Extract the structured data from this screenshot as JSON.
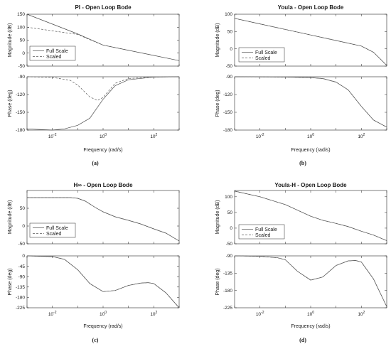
{
  "colors": {
    "full": "#4a4a4a",
    "scaled": "#5a5a5a",
    "axes": "#262626",
    "background": "#ffffff"
  },
  "chart_data": [
    {
      "type": "line",
      "caption": "(a)",
      "title": "PI - Open Loop Bode",
      "xlabel": "Frequency (rad/s)",
      "x_scale": "log",
      "xlim": [
        0.001,
        1000
      ],
      "x_tick_labels": [
        "10^-2",
        "10^0",
        "10^2"
      ],
      "legend": {
        "placement": "bottom-left",
        "entries": [
          "Full Scale",
          "Scaled"
        ]
      },
      "magnitude": {
        "ylabel": "Magnitude (dB)",
        "ylim": [
          -50,
          150
        ],
        "y_ticks": [
          150,
          100,
          50,
          0,
          -50
        ],
        "series": [
          {
            "name": "Full Scale",
            "style": "solid",
            "x": [
              0.001,
              0.01,
              0.1,
              1,
              10,
              100,
              1000
            ],
            "y": [
              150,
              112,
              74,
              31,
              11,
              -9,
              -29
            ]
          },
          {
            "name": "Scaled",
            "style": "dashed",
            "x": [
              0.001,
              0.01,
              0.1,
              0.3,
              1,
              10
            ],
            "y": [
              100,
              86,
              72,
              52,
              31,
              11
            ]
          }
        ]
      },
      "phase": {
        "ylabel": "Phase (deg)",
        "ylim": [
          -180,
          -90
        ],
        "y_ticks": [
          -90,
          -120,
          -150,
          -180
        ],
        "series": [
          {
            "name": "Full Scale",
            "style": "solid",
            "x": [
              0.001,
              0.01,
              0.03,
              0.1,
              0.3,
              1,
              3,
              10,
              100,
              1000
            ],
            "y": [
              -178,
              -180,
              -178,
              -172,
              -160,
              -128,
              -105,
              -95,
              -90.5,
              -90
            ]
          },
          {
            "name": "Scaled",
            "style": "dashed",
            "x": [
              0.001,
              0.01,
              0.05,
              0.1,
              0.3,
              0.6,
              1,
              3,
              10,
              100,
              1000
            ],
            "y": [
              -90,
              -91,
              -96,
              -104,
              -124,
              -130,
              -125,
              -101,
              -93,
              -90.5,
              -90
            ]
          }
        ]
      }
    },
    {
      "type": "line",
      "caption": "(b)",
      "title": "Youla - Open Loop Bode",
      "xlabel": "Frequency (rad/s)",
      "x_scale": "log",
      "xlim": [
        0.001,
        1000
      ],
      "x_tick_labels": [
        "10^-2",
        "10^0",
        "10^2"
      ],
      "legend": {
        "placement": "bottom-right",
        "entries": [
          "Full Scale",
          "Scaled"
        ]
      },
      "magnitude": {
        "ylabel": "Magnitude (dB)",
        "ylim": [
          -50,
          100
        ],
        "y_ticks": [
          100,
          50,
          0,
          -50
        ],
        "series": [
          {
            "name": "Full Scale",
            "style": "solid",
            "x": [
              0.001,
              0.01,
              0.1,
              1,
              10,
              100,
              300,
              1000
            ],
            "y": [
              88,
              72,
              56,
              40,
              24,
              8,
              -10,
              -48
            ]
          },
          {
            "name": "Scaled",
            "style": "dashed",
            "x": [
              0.001,
              0.01,
              0.1,
              1,
              10,
              100,
              300,
              1000
            ],
            "y": [
              88,
              72,
              56,
              40,
              24,
              8,
              -10,
              -48
            ]
          }
        ]
      },
      "phase": {
        "ylabel": "Phase (deg)",
        "ylim": [
          -180,
          -90
        ],
        "y_ticks": [
          -90,
          -120,
          -150,
          -180
        ],
        "series": [
          {
            "name": "Full Scale",
            "style": "solid",
            "x": [
              0.001,
              0.1,
              1,
              3,
              10,
              30,
              100,
              300,
              1000
            ],
            "y": [
              -90,
              -90.5,
              -91.5,
              -93,
              -99,
              -112,
              -140,
              -163,
              -175
            ]
          },
          {
            "name": "Scaled",
            "style": "dashed",
            "x": [
              0.001,
              0.1,
              1,
              3,
              10,
              30,
              100,
              300,
              1000
            ],
            "y": [
              -90,
              -90.5,
              -91.5,
              -93,
              -99,
              -112,
              -140,
              -163,
              -175
            ]
          }
        ]
      }
    },
    {
      "type": "line",
      "caption": "(c)",
      "title": "H∞ - Open Loop Bode",
      "xlabel": "Frequency (rad/s)",
      "x_scale": "log",
      "xlim": [
        0.001,
        1000
      ],
      "x_tick_labels": [
        "10^-2",
        "10^0",
        "10^2"
      ],
      "legend": {
        "placement": "bottom-left",
        "entries": [
          "Full Scale",
          "Scaled"
        ]
      },
      "magnitude": {
        "ylabel": "Magnitude (dB)",
        "ylim": [
          -50,
          100
        ],
        "y_ticks": [
          50,
          0,
          -50
        ],
        "series": [
          {
            "name": "Full Scale",
            "style": "solid",
            "x": [
              0.001,
              0.01,
              0.05,
              0.1,
              0.2,
              0.5,
              1,
              3,
              10,
              30,
              100,
              300,
              1000
            ],
            "y": [
              80,
              80,
              80,
              78,
              70,
              52,
              40,
              26,
              16,
              6,
              -8,
              -20,
              -42
            ]
          },
          {
            "name": "Scaled",
            "style": "dashed",
            "x": [
              0.001,
              0.01,
              0.05,
              0.1,
              0.2,
              0.5,
              1,
              3,
              10,
              30,
              100,
              300,
              1000
            ],
            "y": [
              80,
              80,
              80,
              78,
              70,
              52,
              40,
              26,
              16,
              6,
              -8,
              -20,
              -42
            ]
          }
        ]
      },
      "phase": {
        "ylabel": "Phase (deg)",
        "ylim": [
          -225,
          0
        ],
        "y_ticks": [
          0,
          -45,
          -90,
          -135,
          -180,
          -225
        ],
        "series": [
          {
            "name": "Full Scale",
            "style": "solid",
            "x": [
              0.001,
              0.01,
              0.03,
              0.1,
              0.3,
              1,
              3,
              10,
              30,
              60,
              100,
              300,
              1000
            ],
            "y": [
              0,
              -3,
              -15,
              -60,
              -120,
              -155,
              -150,
              -128,
              -118,
              -116,
              -120,
              -160,
              -225
            ]
          },
          {
            "name": "Scaled",
            "style": "dashed",
            "x": [
              0.001,
              0.01,
              0.03,
              0.1,
              0.3,
              1,
              3,
              10,
              30,
              60,
              100,
              300,
              1000
            ],
            "y": [
              0,
              -3,
              -15,
              -60,
              -120,
              -155,
              -150,
              -128,
              -118,
              -116,
              -120,
              -160,
              -225
            ]
          }
        ]
      }
    },
    {
      "type": "line",
      "caption": "(d)",
      "title": "Youla-H - Open Loop Bode",
      "xlabel": "Frequency (rad/s)",
      "x_scale": "log",
      "xlim": [
        0.001,
        1000
      ],
      "x_tick_labels": [
        "10^-2",
        "10^0",
        "10^2"
      ],
      "legend": {
        "placement": "bottom-right",
        "entries": [
          "Full Scale",
          "Scaled"
        ]
      },
      "magnitude": {
        "ylabel": "Magnitude (dB)",
        "ylim": [
          -50,
          120
        ],
        "y_ticks": [
          100,
          50,
          0,
          -50
        ],
        "series": [
          {
            "name": "Full Scale",
            "style": "solid",
            "x": [
              0.001,
              0.01,
              0.1,
              1,
              3,
              10,
              30,
              100,
              300,
              1000
            ],
            "y": [
              118,
              100,
              75,
              38,
              25,
              15,
              5,
              -10,
              -22,
              -40
            ]
          },
          {
            "name": "Scaled",
            "style": "dashed",
            "x": [
              0.001,
              0.01,
              0.1,
              1,
              3,
              10,
              30,
              100,
              300,
              1000
            ],
            "y": [
              118,
              100,
              75,
              38,
              25,
              15,
              5,
              -10,
              -22,
              -40
            ]
          }
        ]
      },
      "phase": {
        "ylabel": "Phase (deg)",
        "ylim": [
          -225,
          -90
        ],
        "y_ticks": [
          -90,
          -135,
          -180,
          -225
        ],
        "series": [
          {
            "name": "Full Scale",
            "style": "solid",
            "x": [
              0.001,
              0.01,
              0.05,
              0.1,
              0.3,
              1,
              3,
              10,
              30,
              60,
              100,
              300,
              1000
            ],
            "y": [
              -90,
              -91,
              -95,
              -100,
              -130,
              -153,
              -145,
              -115,
              -103,
              -102,
              -106,
              -150,
              -222
            ]
          },
          {
            "name": "Scaled",
            "style": "dashed",
            "x": [
              0.001,
              0.01,
              0.05,
              0.1,
              0.3,
              1,
              3,
              10,
              30,
              60,
              100,
              300,
              1000
            ],
            "y": [
              -90,
              -91,
              -95,
              -100,
              -130,
              -153,
              -145,
              -115,
              -103,
              -102,
              -106,
              -150,
              -222
            ]
          }
        ]
      }
    }
  ]
}
